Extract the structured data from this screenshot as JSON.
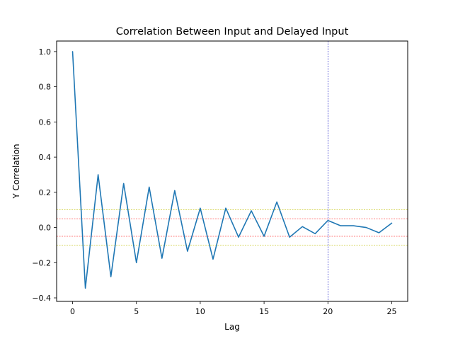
{
  "chart_data": {
    "type": "line",
    "title": "Correlation Between Input and Delayed Input",
    "xlabel": "Lag",
    "ylabel": "Y Correlation",
    "xlim": [
      -1.25,
      26.25
    ],
    "ylim": [
      -0.42,
      1.06
    ],
    "xticks": [
      0,
      5,
      10,
      15,
      20,
      25
    ],
    "xtick_labels": [
      "0",
      "5",
      "10",
      "15",
      "20",
      "25"
    ],
    "yticks": [
      -0.4,
      -0.2,
      0.0,
      0.2,
      0.4,
      0.6,
      0.8,
      1.0
    ],
    "ytick_labels": [
      "−0.4",
      "−0.2",
      "0.0",
      "0.2",
      "0.4",
      "0.6",
      "0.8",
      "1.0"
    ],
    "grid": false,
    "series": [
      {
        "color": "#1f77b4",
        "x": [
          0,
          1,
          2,
          3,
          4,
          5,
          6,
          7,
          8,
          9,
          10,
          11,
          12,
          13,
          14,
          15,
          16,
          17,
          18,
          19,
          20,
          21,
          22,
          23,
          24,
          25
        ],
        "y": [
          1.0,
          -0.345,
          0.3,
          -0.28,
          0.25,
          -0.2,
          0.23,
          -0.175,
          0.21,
          -0.135,
          0.11,
          -0.18,
          0.11,
          -0.055,
          0.095,
          -0.05,
          0.145,
          -0.055,
          0.005,
          -0.035,
          0.04,
          0.01,
          0.01,
          0.0,
          -0.03,
          0.025
        ]
      }
    ],
    "reference_lines": [
      {
        "orientation": "horizontal",
        "value": 0.1,
        "color": "#bfbf00",
        "style": "dashed"
      },
      {
        "orientation": "horizontal",
        "value": -0.1,
        "color": "#bfbf00",
        "style": "dashed"
      },
      {
        "orientation": "horizontal",
        "value": 0.05,
        "color": "#ff0000",
        "style": "dashed"
      },
      {
        "orientation": "horizontal",
        "value": -0.05,
        "color": "#ff0000",
        "style": "dashed"
      },
      {
        "orientation": "vertical",
        "value": 20,
        "color": "#0000bf",
        "style": "dashed"
      }
    ]
  }
}
